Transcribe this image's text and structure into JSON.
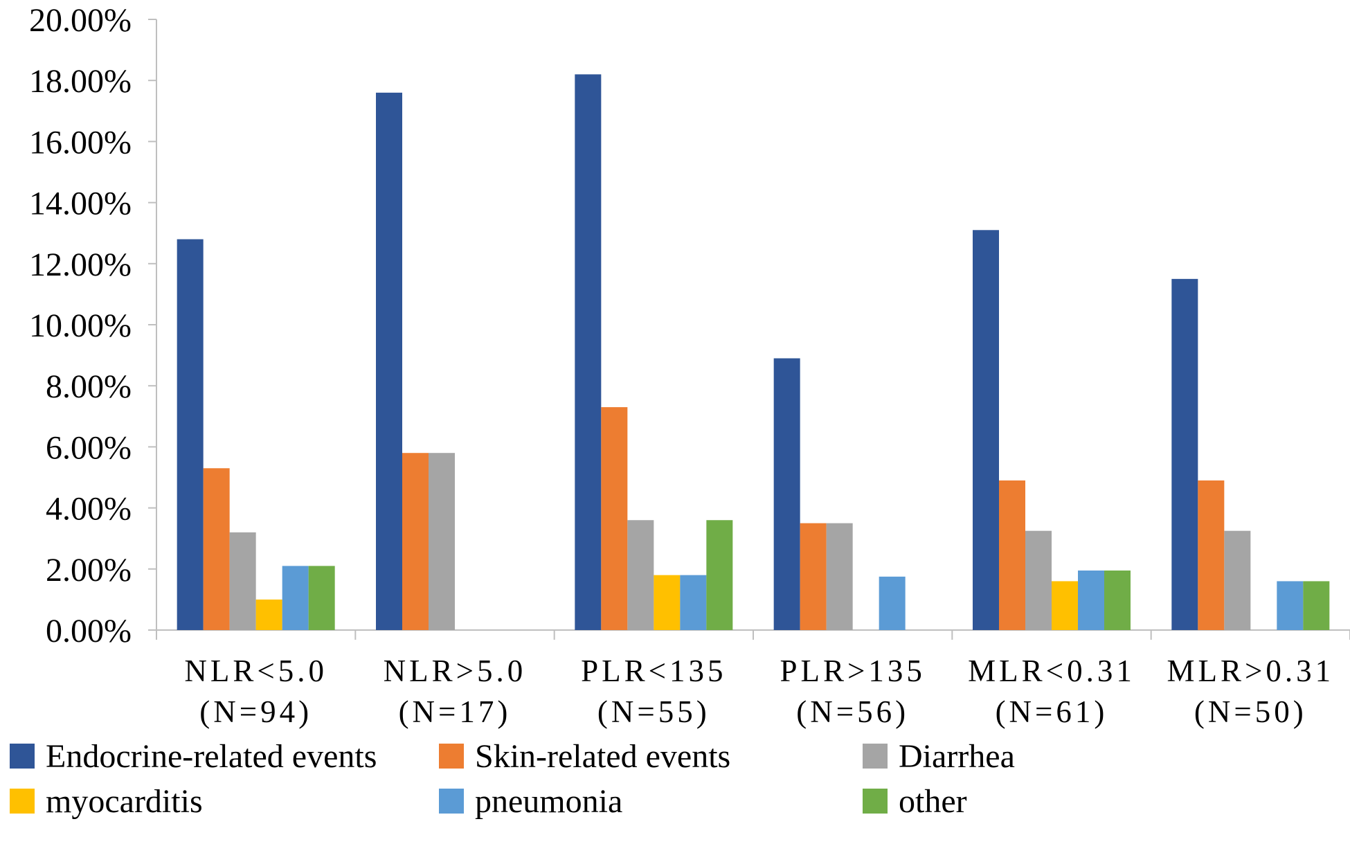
{
  "chart_data": {
    "type": "bar",
    "title": "",
    "xlabel": "",
    "ylabel": "",
    "ylim": [
      0,
      20
    ],
    "y_ticks": [
      0,
      2,
      4,
      6,
      8,
      10,
      12,
      14,
      16,
      18,
      20
    ],
    "y_tick_labels": [
      "0.00%",
      "2.00%",
      "4.00%",
      "6.00%",
      "8.00%",
      "10.00%",
      "12.00%",
      "14.00%",
      "16.00%",
      "18.00%",
      "20.00%"
    ],
    "grid": false,
    "legend_position": "bottom",
    "categories": [
      {
        "line1": "NLR<5.0",
        "line2": "(N=94)"
      },
      {
        "line1": "NLR>5.0",
        "line2": "(N=17)"
      },
      {
        "line1": "PLR<135",
        "line2": "(N=55)"
      },
      {
        "line1": "PLR>135",
        "line2": "(N=56)"
      },
      {
        "line1": "MLR<0.31",
        "line2": "(N=61)"
      },
      {
        "line1": "MLR>0.31",
        "line2": "(N=50)"
      }
    ],
    "series": [
      {
        "name": "Endocrine-related events",
        "color": "#2F5597",
        "values": [
          12.8,
          17.6,
          18.2,
          8.9,
          13.1,
          11.5
        ]
      },
      {
        "name": "Skin-related events",
        "color": "#ED7D31",
        "values": [
          5.3,
          5.8,
          7.3,
          3.5,
          4.9,
          4.9
        ]
      },
      {
        "name": "Diarrhea",
        "color": "#A5A5A5",
        "values": [
          3.2,
          5.8,
          3.6,
          3.5,
          3.25,
          3.25
        ]
      },
      {
        "name": "myocarditis",
        "color": "#FFC000",
        "values": [
          1.0,
          0,
          1.8,
          0,
          1.6,
          0
        ]
      },
      {
        "name": "pneumonia",
        "color": "#5B9BD5",
        "values": [
          2.1,
          0,
          1.8,
          1.75,
          1.95,
          1.6
        ]
      },
      {
        "name": "other",
        "color": "#70AD47",
        "values": [
          2.1,
          0,
          3.6,
          0,
          1.95,
          1.6
        ]
      }
    ]
  }
}
